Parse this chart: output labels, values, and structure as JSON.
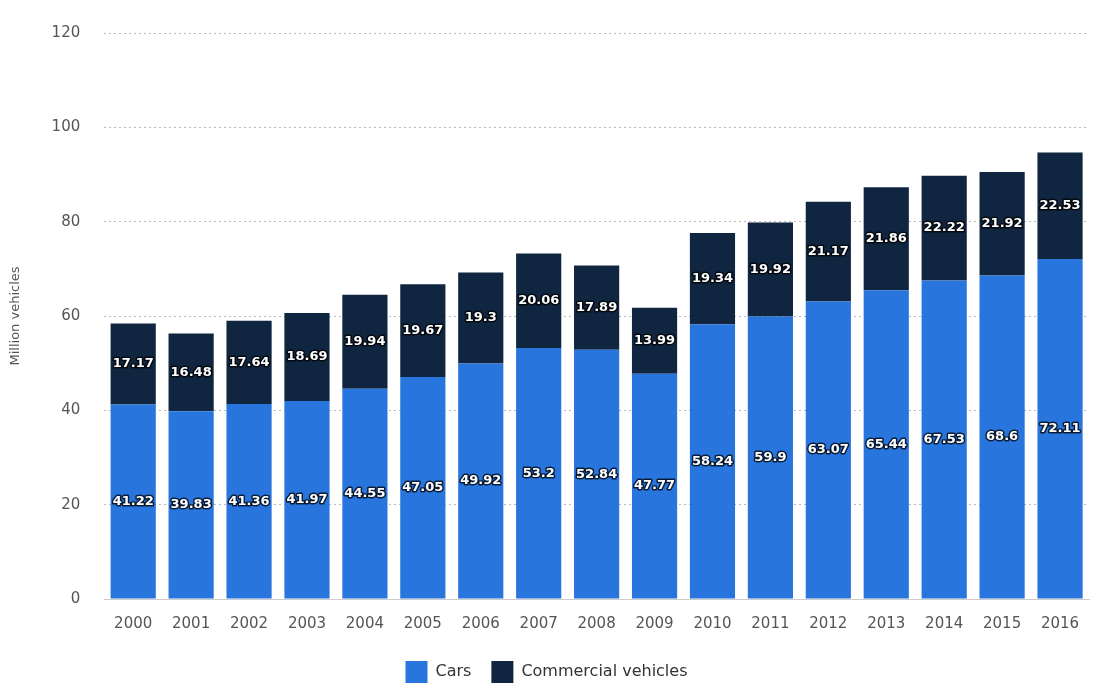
{
  "chart_data": {
    "type": "bar",
    "stacked": true,
    "ylabel": "Million vehicles",
    "categories": [
      "2000",
      "2001",
      "2002",
      "2003",
      "2004",
      "2005",
      "2006",
      "2007",
      "2008",
      "2009",
      "2010",
      "2011",
      "2012",
      "2013",
      "2014",
      "2015",
      "2016"
    ],
    "series": [
      {
        "name": "Cars",
        "color": "#2876dd",
        "values": [
          41.22,
          39.83,
          41.36,
          41.97,
          44.55,
          47.05,
          49.92,
          53.2,
          52.84,
          47.77,
          58.24,
          59.9,
          63.07,
          65.44,
          67.53,
          68.6,
          72.11
        ]
      },
      {
        "name": "Commercial vehicles",
        "color": "#10253f",
        "values": [
          17.17,
          16.48,
          17.64,
          18.69,
          19.94,
          19.67,
          19.3,
          20.06,
          17.89,
          13.99,
          19.34,
          19.92,
          21.17,
          21.86,
          22.22,
          21.92,
          22.53
        ]
      }
    ],
    "ylim": [
      0,
      120
    ],
    "yticks": [
      0,
      20,
      40,
      60,
      80,
      100,
      120
    ],
    "grid": "y",
    "legend": "bottom",
    "data_labels": true
  }
}
